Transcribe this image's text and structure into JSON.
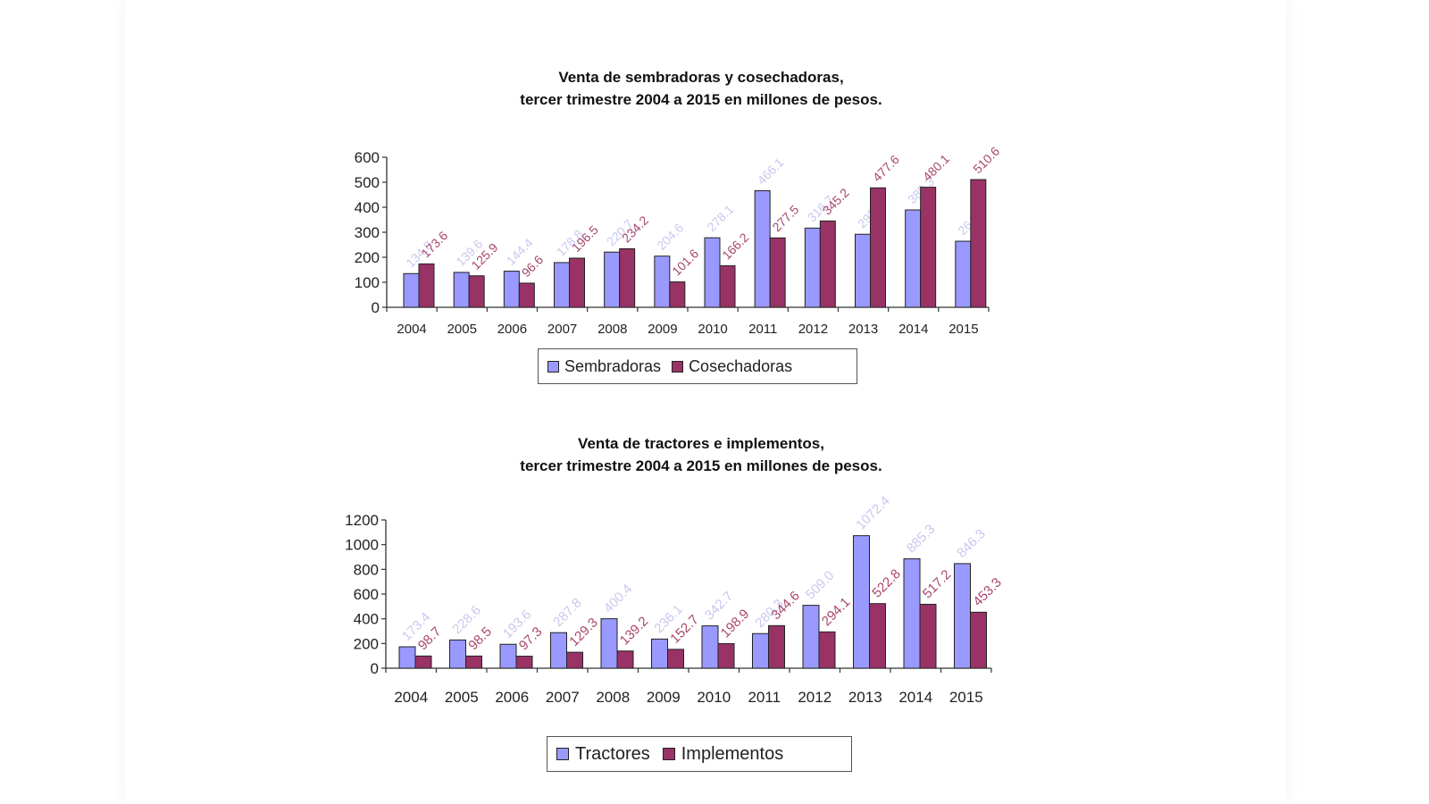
{
  "chart_data": [
    {
      "type": "bar",
      "title": [
        "Venta de sembradoras y cosechadoras,",
        "tercer trimestre 2004 a 2015 en millones de pesos."
      ],
      "categories": [
        "2004",
        "2005",
        "2006",
        "2007",
        "2008",
        "2009",
        "2010",
        "2011",
        "2012",
        "2013",
        "2014",
        "2015"
      ],
      "series": [
        {
          "name": "Sembradoras",
          "values": [
            134.8,
            139.6,
            144.4,
            178.8,
            220.7,
            204.6,
            278.1,
            466.1,
            316.7,
            292.0,
            389.3,
            264.2
          ],
          "labels": [
            "134.8",
            "139.6",
            "144.4",
            "178.8",
            "220.7",
            "204.6",
            "278.1",
            "466.1",
            "316.7",
            "292.0",
            "389.3",
            "264.2"
          ]
        },
        {
          "name": "Cosechadoras",
          "values": [
            173.6,
            125.9,
            96.6,
            196.5,
            234.2,
            101.6,
            166.2,
            277.5,
            345.2,
            477.6,
            480.1,
            510.6
          ],
          "labels": [
            "173.6",
            "125.9",
            "96.6",
            "196.5",
            "234.2",
            "101.6",
            "166.2",
            "277.5",
            "345.2",
            "477.6",
            "480.1",
            "510.6"
          ]
        }
      ],
      "ylim": [
        0,
        600
      ],
      "yticks": [
        "0",
        "100",
        "200",
        "300",
        "400",
        "500",
        "600"
      ],
      "colors": {
        "series1": "#9999ff",
        "series2": "#993366",
        "label1": "#c8c8f0",
        "label2": "#a8466e"
      },
      "legend": "bottom"
    },
    {
      "type": "bar",
      "title": [
        "Venta de tractores e implementos,",
        "tercer trimestre 2004 a 2015 en millones de pesos."
      ],
      "categories": [
        "2004",
        "2005",
        "2006",
        "2007",
        "2008",
        "2009",
        "2010",
        "2011",
        "2012",
        "2013",
        "2014",
        "2015"
      ],
      "series": [
        {
          "name": "Tractores",
          "values": [
            173.4,
            228.6,
            193.6,
            287.8,
            400.4,
            236.1,
            342.7,
            280.3,
            509.0,
            1072.4,
            885.3,
            846.3
          ],
          "labels": [
            "173.4",
            "228.6",
            "193.6",
            "287.8",
            "400.4",
            "236.1",
            "342.7",
            "280.3",
            "509.0",
            "1072.4",
            "885.3",
            "846.3"
          ]
        },
        {
          "name": "Implementos",
          "values": [
            98.7,
            98.5,
            97.3,
            129.3,
            139.2,
            152.7,
            198.9,
            344.6,
            294.1,
            522.8,
            517.2,
            453.3
          ],
          "labels": [
            "98.7",
            "98.5",
            "97.3",
            "129.3",
            "139.2",
            "152.7",
            "198.9",
            "344.6",
            "294.1",
            "522.8",
            "517.2",
            "453.3"
          ]
        }
      ],
      "ylim": [
        0,
        1200
      ],
      "yticks": [
        "0",
        "200",
        "400",
        "600",
        "800",
        "1000",
        "1200"
      ],
      "colors": {
        "series1": "#9999ff",
        "series2": "#993366",
        "label1": "#c8c8f0",
        "label2": "#a8466e"
      },
      "legend": "bottom"
    }
  ]
}
